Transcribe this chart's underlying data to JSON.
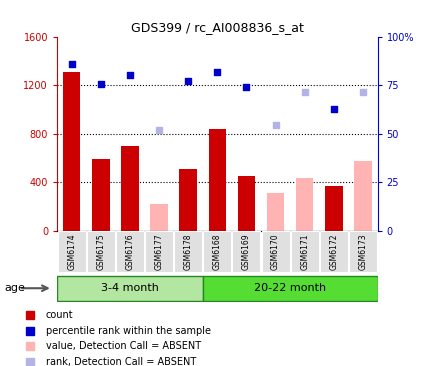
{
  "title": "GDS399 / rc_AI008836_s_at",
  "samples": [
    "GSM6174",
    "GSM6175",
    "GSM6176",
    "GSM6177",
    "GSM6178",
    "GSM6168",
    "GSM6169",
    "GSM6170",
    "GSM6171",
    "GSM6172",
    "GSM6173"
  ],
  "count_present": [
    1310,
    590,
    700,
    null,
    510,
    840,
    450,
    null,
    null,
    370,
    null
  ],
  "count_absent": [
    null,
    null,
    null,
    220,
    null,
    null,
    null,
    310,
    430,
    null,
    570
  ],
  "rank_present": [
    1370,
    1210,
    1280,
    null,
    1230,
    1310,
    1185,
    null,
    null,
    1000,
    null
  ],
  "rank_absent": [
    null,
    null,
    null,
    830,
    null,
    null,
    null,
    870,
    1140,
    null,
    1140
  ],
  "groups": [
    {
      "label": "3-4 month",
      "start": 0,
      "end": 5,
      "color": "#b3e6a0"
    },
    {
      "label": "20-22 month",
      "start": 5,
      "end": 11,
      "color": "#55dd33"
    }
  ],
  "ylim_left": [
    0,
    1600
  ],
  "ylim_right": [
    0,
    100
  ],
  "yticks_left": [
    0,
    400,
    800,
    1200,
    1600
  ],
  "yticks_right": [
    0,
    25,
    50,
    75,
    100
  ],
  "hlines": [
    400,
    800,
    1200
  ],
  "count_present_color": "#cc0000",
  "count_absent_color": "#ffb3b3",
  "rank_present_color": "#0000cc",
  "rank_absent_color": "#b3b3e6",
  "bg_color": "#e0e0e0",
  "age_label": "age"
}
